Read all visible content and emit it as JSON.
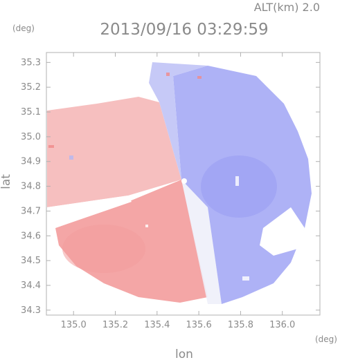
{
  "chart_data": {
    "type": "heatmap",
    "title": "2013/09/16 03:29:59",
    "altitude_label": "ALT(km) 2.0",
    "ylabel": "lat",
    "xlabel": "lon",
    "y_unit": "(deg)",
    "x_unit": "(deg)",
    "xlim": [
      134.87,
      136.18
    ],
    "ylim": [
      34.28,
      35.34
    ],
    "x_ticks": [
      "135.0",
      "135.2",
      "135.4",
      "135.6",
      "135.8",
      "136.0"
    ],
    "x_tick_values": [
      135.0,
      135.2,
      135.4,
      135.6,
      135.8,
      136.0
    ],
    "y_ticks": [
      "34.3",
      "34.4",
      "34.5",
      "34.6",
      "34.7",
      "34.8",
      "34.9",
      "35.0",
      "35.1",
      "35.2",
      "35.3"
    ],
    "y_tick_values": [
      34.3,
      34.4,
      34.5,
      34.6,
      34.7,
      34.8,
      34.9,
      35.0,
      35.1,
      35.2,
      35.3
    ],
    "radar_center": [
      135.53,
      34.82
    ],
    "colors": {
      "positive": "#f4a6a6",
      "negative": "#a9aef6",
      "neutral": "#f2f2f6",
      "axis": "#b0b0b0",
      "text": "#8a8a8a"
    }
  }
}
